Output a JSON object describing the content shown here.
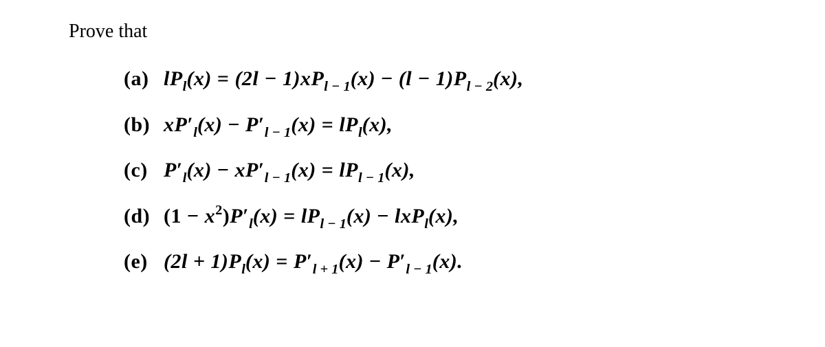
{
  "document": {
    "background_color": "#ffffff",
    "text_color": "#000000",
    "font_family": "Times New Roman",
    "intro_fontsize": 28,
    "equation_fontsize": 30,
    "equation_fontweight": "bold",
    "line_spacing": 1.5
  },
  "intro": {
    "text": "Prove that"
  },
  "equations": {
    "a": {
      "label": "(a)",
      "lhs_coef": "l",
      "lhs_func": "P",
      "lhs_sub": "l",
      "lhs_arg": "(x)",
      "eq": " = ",
      "t1_coef": "(2l − 1)x",
      "t1_func": "P",
      "t1_sub": "l − 1",
      "t1_arg": "(x)",
      "minus": " − ",
      "t2_coef": "(l − 1)",
      "t2_func": "P",
      "t2_sub": "l − 2",
      "t2_arg": "(x),"
    },
    "b": {
      "label": "(b)",
      "t1_coef": "x",
      "t1_func": "P",
      "t1_prime": "′",
      "t1_sub": "l",
      "t1_arg": "(x)",
      "minus": " − ",
      "t2_func": "P",
      "t2_prime": "′",
      "t2_sub": "l − 1",
      "t2_arg": "(x)",
      "eq": " = ",
      "rhs_coef": "l",
      "rhs_func": "P",
      "rhs_sub": "l",
      "rhs_arg": "(x),"
    },
    "c": {
      "label": "(c)",
      "t1_func": "P",
      "t1_prime": "′",
      "t1_sub": "l",
      "t1_arg": "(x)",
      "minus": " − ",
      "t2_coef": "x",
      "t2_func": "P",
      "t2_prime": "′",
      "t2_sub": "l − 1",
      "t2_arg": "(x)",
      "eq": " = ",
      "rhs_coef": "l",
      "rhs_func": "P",
      "rhs_sub": "l − 1",
      "rhs_arg": "(x),"
    },
    "d": {
      "label": "(d)",
      "t1_coef_open": "(1 − ",
      "t1_coef_x": "x",
      "t1_coef_sup": "2",
      "t1_coef_close": ")",
      "t1_func": "P",
      "t1_prime": "′",
      "t1_sub": "l",
      "t1_arg": "(x)",
      "eq": " = ",
      "t2_coef": "l",
      "t2_func": "P",
      "t2_sub": "l − 1",
      "t2_arg": "(x)",
      "minus": " − ",
      "t3_coef": "lx",
      "t3_func": "P",
      "t3_sub": "l",
      "t3_arg": "(x),"
    },
    "e": {
      "label": "(e)",
      "lhs_coef": "(2l + 1)",
      "lhs_func": "P",
      "lhs_sub": "l",
      "lhs_arg": "(x)",
      "eq": " = ",
      "t1_func": "P",
      "t1_prime": "′",
      "t1_sub": "l + 1",
      "t1_arg": "(x)",
      "minus": " − ",
      "t2_func": "P",
      "t2_prime": "′",
      "t2_sub": "l − 1",
      "t2_arg": "(x)."
    }
  }
}
